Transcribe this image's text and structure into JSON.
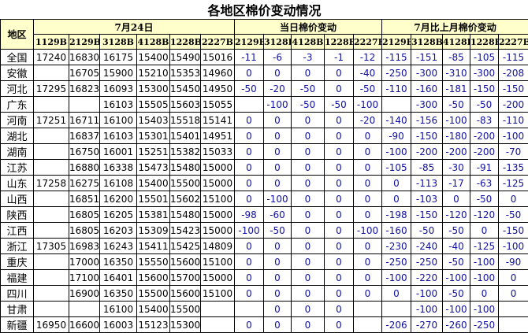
{
  "title": "各地区棉价变动情况",
  "header": {
    "region": "地区",
    "group_price": "7月24日",
    "group_daily": "当日棉价变动",
    "group_monthly": "7月比上月棉价变动",
    "price_cols": [
      "1129B",
      "2129B",
      "3128B",
      "4128B",
      "1228B",
      "2227B"
    ],
    "daily_cols": [
      "2129B",
      "3128B",
      "4128B",
      "1228B",
      "2227B"
    ],
    "monthly_cols": [
      "2129B",
      "3128B",
      "4128B",
      "1228B",
      "2227B"
    ]
  },
  "colors": {
    "header_bg": "#FFFFCC",
    "change_text": "#1010a0"
  },
  "rows": [
    {
      "region": "全国",
      "price": [
        "17240",
        "16830",
        "16175",
        "15400",
        "15490",
        "15016"
      ],
      "daily": [
        "-11",
        "-6",
        "-3",
        "-1",
        "-12"
      ],
      "monthly": [
        "-115",
        "-151",
        "-85",
        "-105",
        "-115"
      ]
    },
    {
      "region": "安徽",
      "price": [
        "",
        "16705",
        "15900",
        "15210",
        "15353",
        "14960"
      ],
      "daily": [
        "0",
        "0",
        "0",
        "0",
        "-40"
      ],
      "monthly": [
        "-250",
        "-300",
        "-310",
        "-300",
        "-208"
      ]
    },
    {
      "region": "河北",
      "price": [
        "17295",
        "16823",
        "16093",
        "15300",
        "15450",
        "14950"
      ],
      "daily": [
        "-50",
        "-20",
        "-50",
        "0",
        "-50"
      ],
      "monthly": [
        "-110",
        "-160",
        "-181",
        "-150",
        "-150"
      ]
    },
    {
      "region": "广东",
      "price": [
        "",
        "",
        "16103",
        "15505",
        "15603",
        "15055"
      ],
      "daily": [
        "",
        "-100",
        "-50",
        "-50",
        "-100"
      ],
      "monthly": [
        "",
        "-300",
        "-50",
        "-50",
        "-200"
      ]
    },
    {
      "region": "河南",
      "price": [
        "17251",
        "16711",
        "16100",
        "15403",
        "15518",
        "15141"
      ],
      "daily": [
        "0",
        "0",
        "0",
        "0",
        "-20"
      ],
      "monthly": [
        "-140",
        "-156",
        "-100",
        "-83",
        "-110"
      ]
    },
    {
      "region": "湖北",
      "price": [
        "",
        "16837",
        "16103",
        "15301",
        "15401",
        "14951"
      ],
      "daily": [
        "0",
        "0",
        "0",
        "0",
        "0"
      ],
      "monthly": [
        "-90",
        "-150",
        "-180",
        "-200",
        "-100"
      ]
    },
    {
      "region": "湖南",
      "price": [
        "",
        "16750",
        "16001",
        "15251",
        "15382",
        "15033"
      ],
      "daily": [
        "0",
        "0",
        "0",
        "0",
        "0"
      ],
      "monthly": [
        "-100",
        "-200",
        "-200",
        "-200",
        "-70"
      ]
    },
    {
      "region": "江苏",
      "price": [
        "",
        "16880",
        "16338",
        "15473",
        "15480",
        "15000"
      ],
      "daily": [
        "0",
        "0",
        "0",
        "0",
        "0"
      ],
      "monthly": [
        "-105",
        "-85",
        "-30",
        "-91",
        "-135"
      ]
    },
    {
      "region": "山东",
      "price": [
        "17258",
        "16275",
        "16108",
        "15400",
        "15500",
        "15000"
      ],
      "daily": [
        "0",
        "0",
        "0",
        "0",
        "0"
      ],
      "monthly": [
        "0",
        "-113",
        "-17",
        "-63",
        "-125"
      ]
    },
    {
      "region": "山西",
      "price": [
        "",
        "16851",
        "16200",
        "15501",
        "15602",
        "15100"
      ],
      "daily": [
        "0",
        "-100",
        "0",
        "0",
        "0"
      ],
      "monthly": [
        "0",
        "-103",
        "0",
        "-50",
        "0"
      ]
    },
    {
      "region": "陕西",
      "price": [
        "",
        "16805",
        "16205",
        "15381",
        "15480",
        "15000"
      ],
      "daily": [
        "-98",
        "-60",
        "0",
        "0",
        "0"
      ],
      "monthly": [
        "-198",
        "-150",
        "-120",
        "-120",
        "-50"
      ]
    },
    {
      "region": "江西",
      "price": [
        "",
        "16805",
        "16203",
        "15309",
        "15423",
        "15000"
      ],
      "daily": [
        "-100",
        "-50",
        "0",
        "0",
        "-100"
      ],
      "monthly": [
        "-160",
        "-50",
        "-50",
        "0",
        "-150"
      ]
    },
    {
      "region": "浙江",
      "price": [
        "17305",
        "16983",
        "16243",
        "15411",
        "15425",
        "14809"
      ],
      "daily": [
        "0",
        "0",
        "0",
        "0",
        "0"
      ],
      "monthly": [
        "-230",
        "-240",
        "-40",
        "-125",
        "-100"
      ]
    },
    {
      "region": "重庆",
      "price": [
        "",
        "17000",
        "16350",
        "15550",
        "15600",
        "15100"
      ],
      "daily": [
        "0",
        "0",
        "0",
        "0",
        "0"
      ],
      "monthly": [
        "-250",
        "-250",
        "-50",
        "-100",
        "-90"
      ]
    },
    {
      "region": "福建",
      "price": [
        "",
        "17100",
        "16401",
        "15600",
        "15700",
        "15000"
      ],
      "daily": [
        "0",
        "0",
        "0",
        "0",
        "0"
      ],
      "monthly": [
        "-100",
        "-220",
        "-100",
        "-100",
        "0"
      ]
    },
    {
      "region": "四川",
      "price": [
        "",
        "16900",
        "16350",
        "15500",
        "15600",
        "15100"
      ],
      "daily": [
        "0",
        "0",
        "0",
        "0",
        "0"
      ],
      "monthly": [
        "0",
        "-100",
        "-50",
        "0",
        "0"
      ]
    },
    {
      "region": "甘肃",
      "price": [
        "",
        "",
        "16100",
        "15400",
        "15500",
        ""
      ],
      "daily": [
        "",
        "0",
        "0",
        "0",
        ""
      ],
      "monthly": [
        "",
        "-100",
        "-100",
        "-100",
        ""
      ]
    },
    {
      "region": "新疆",
      "price": [
        "16950",
        "16600",
        "16003",
        "15123",
        "15300",
        ""
      ],
      "daily": [
        "0",
        "0",
        "0",
        "0",
        ""
      ],
      "monthly": [
        "-206",
        "-270",
        "-260",
        "-250",
        ""
      ]
    }
  ]
}
